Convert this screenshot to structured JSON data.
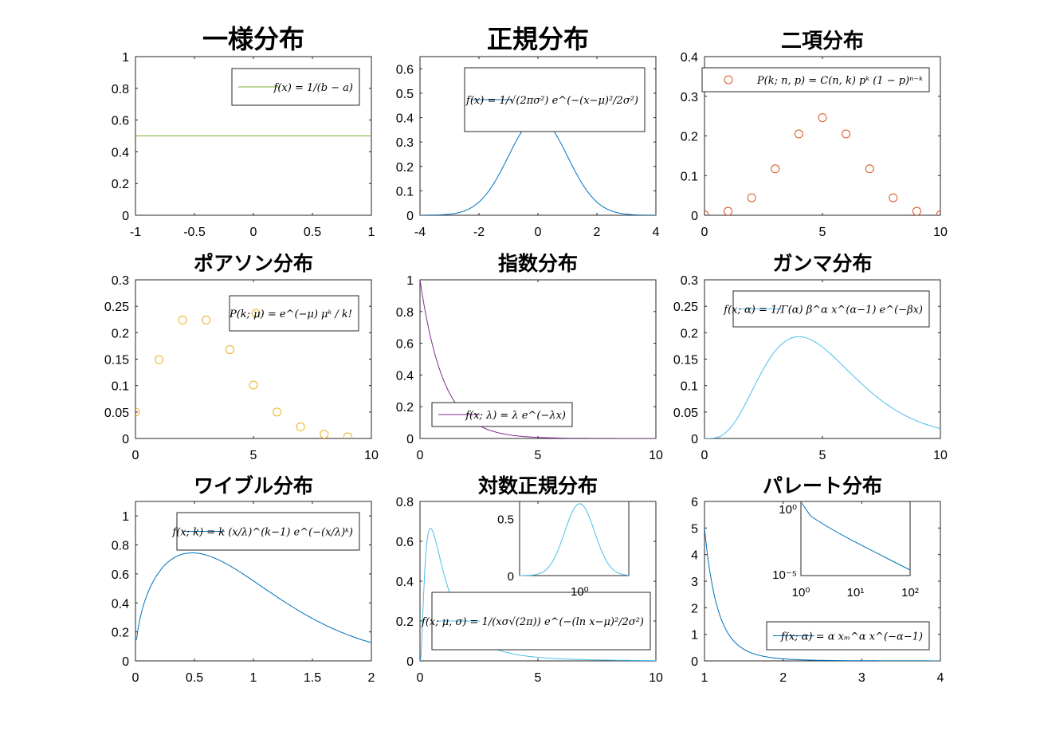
{
  "figure": {
    "background": "#ffffff"
  },
  "chart_data": [
    {
      "type": "line",
      "title": "一様分布",
      "xlim": [
        -1,
        1
      ],
      "ylim": [
        0,
        1
      ],
      "xticks": [
        -1,
        -0.5,
        0,
        0.5,
        1
      ],
      "xtick_labels": [
        "-1",
        "-0.5",
        "0",
        "0.5",
        "1"
      ],
      "yticks": [
        0,
        0.2,
        0.4,
        0.6,
        0.8,
        1
      ],
      "ytick_labels": [
        "0",
        "0.2",
        "0.4",
        "0.6",
        "0.8",
        "1"
      ],
      "legend": {
        "text": "f(x) = 1/(b − a)",
        "position": "top-right",
        "marker": "line"
      },
      "series": [
        {
          "color": "#77ac30",
          "x": [
            -1,
            1
          ],
          "y": [
            0.5,
            0.5
          ]
        }
      ]
    },
    {
      "type": "line",
      "title": "正規分布",
      "xlim": [
        -4,
        4
      ],
      "ylim": [
        0,
        0.65
      ],
      "xticks": [
        -4,
        -2,
        0,
        2,
        4
      ],
      "xtick_labels": [
        "-4",
        "-2",
        "0",
        "2",
        "4"
      ],
      "yticks": [
        0,
        0.1,
        0.2,
        0.3,
        0.4,
        0.5,
        0.6
      ],
      "ytick_labels": [
        "0",
        "0.1",
        "0.2",
        "0.3",
        "0.4",
        "0.5",
        "0.6"
      ],
      "legend": {
        "text": "f(x) = 1/√(2πσ²) e^(−(x−μ)²/2σ²)",
        "position": "top-right",
        "marker": "line"
      },
      "series": [
        {
          "color": "#0072bd",
          "x": [
            -4,
            -3.5,
            -3,
            -2.5,
            -2,
            -1.5,
            -1,
            -0.5,
            0,
            0.5,
            1,
            1.5,
            2,
            2.5,
            3,
            3.5,
            4
          ],
          "y": [
            0.0001,
            0.0009,
            0.0044,
            0.0175,
            0.054,
            0.1295,
            0.242,
            0.352,
            0.399,
            0.352,
            0.242,
            0.1295,
            0.054,
            0.0175,
            0.0044,
            0.0009,
            0.0001
          ]
        }
      ]
    },
    {
      "type": "scatter",
      "title": "二項分布",
      "xlim": [
        0,
        10
      ],
      "ylim": [
        0,
        0.4
      ],
      "xticks": [
        0,
        5,
        10
      ],
      "xtick_labels": [
        "0",
        "5",
        "10"
      ],
      "yticks": [
        0,
        0.1,
        0.2,
        0.3,
        0.4
      ],
      "ytick_labels": [
        "0",
        "0.1",
        "0.2",
        "0.3",
        "0.4"
      ],
      "legend": {
        "text": "P(k; n, p) = C(n, k) pᵏ (1 − p)ⁿ⁻ᵏ",
        "position": "top",
        "marker": "circle"
      },
      "series": [
        {
          "color": "#d95319",
          "x": [
            0,
            1,
            2,
            3,
            4,
            5,
            6,
            7,
            8,
            9,
            10
          ],
          "y": [
            0.001,
            0.01,
            0.044,
            0.117,
            0.205,
            0.246,
            0.205,
            0.117,
            0.044,
            0.01,
            0.001
          ]
        }
      ]
    },
    {
      "type": "scatter",
      "title": "ポアソン分布",
      "xlim": [
        0,
        10
      ],
      "ylim": [
        0,
        0.3
      ],
      "xticks": [
        0,
        5,
        10
      ],
      "xtick_labels": [
        "0",
        "5",
        "10"
      ],
      "yticks": [
        0,
        0.05,
        0.1,
        0.15,
        0.2,
        0.25,
        0.3
      ],
      "ytick_labels": [
        "0",
        "0.05",
        "0.1",
        "0.15",
        "0.2",
        "0.25",
        "0.3"
      ],
      "legend": {
        "text": "P(k; μ) = e^(−μ) μᵏ / k!",
        "position": "top-right",
        "marker": "circle"
      },
      "series": [
        {
          "color": "#edb120",
          "x": [
            0,
            1,
            2,
            3,
            4,
            5,
            6,
            7,
            8,
            9
          ],
          "y": [
            0.05,
            0.149,
            0.224,
            0.224,
            0.168,
            0.101,
            0.05,
            0.022,
            0.008,
            0.003
          ]
        }
      ]
    },
    {
      "type": "line",
      "title": "指数分布",
      "xlim": [
        0,
        10
      ],
      "ylim": [
        0,
        1
      ],
      "xticks": [
        0,
        5,
        10
      ],
      "xtick_labels": [
        "0",
        "5",
        "10"
      ],
      "yticks": [
        0,
        0.2,
        0.4,
        0.6,
        0.8,
        1
      ],
      "ytick_labels": [
        "0",
        "0.2",
        "0.4",
        "0.6",
        "0.8",
        "1"
      ],
      "legend": {
        "text": "f(x; λ) = λ e^(−λx)",
        "position": "bottom-left",
        "marker": "line"
      },
      "series": [
        {
          "color": "#7e2f8e",
          "x": [
            0,
            0.25,
            0.5,
            0.75,
            1,
            1.5,
            2,
            2.5,
            3,
            4,
            5,
            6,
            7,
            8,
            10
          ],
          "y": [
            1,
            0.779,
            0.607,
            0.472,
            0.368,
            0.223,
            0.135,
            0.082,
            0.05,
            0.018,
            0.007,
            0.002,
            0.001,
            0.0003,
            0
          ]
        }
      ]
    },
    {
      "type": "line",
      "title": "ガンマ分布",
      "xlim": [
        0,
        10
      ],
      "ylim": [
        0,
        0.3
      ],
      "xticks": [
        0,
        5,
        10
      ],
      "xtick_labels": [
        "0",
        "5",
        "10"
      ],
      "yticks": [
        0,
        0.05,
        0.1,
        0.15,
        0.2,
        0.25,
        0.3
      ],
      "ytick_labels": [
        "0",
        "0.05",
        "0.1",
        "0.15",
        "0.2",
        "0.25",
        "0.3"
      ],
      "legend": {
        "text": "f(x; α) = 1/Γ(α) β^α x^(α−1) e^(−βx)",
        "position": "top-right",
        "marker": "line"
      },
      "series": [
        {
          "color": "#4dbeee",
          "x": [
            0,
            0.5,
            1,
            1.5,
            2,
            2.5,
            3,
            3.5,
            4,
            4.5,
            5,
            5.5,
            6,
            7,
            8,
            9,
            10
          ],
          "y": [
            0,
            0.0126,
            0.0613,
            0.1255,
            0.1804,
            0.2138,
            0.224,
            0.2158,
            0.1954,
            0.1687,
            0.1404,
            0.1133,
            0.0892,
            0.0521,
            0.0286,
            0.015,
            0.0076
          ]
        }
      ]
    },
    {
      "type": "line",
      "title": "ワイブル分布",
      "xlim": [
        0,
        2
      ],
      "ylim": [
        0,
        1.1
      ],
      "xticks": [
        0,
        0.5,
        1,
        1.5,
        2
      ],
      "xtick_labels": [
        "0",
        "0.5",
        "1",
        "1.5",
        "2"
      ],
      "yticks": [
        0,
        0.2,
        0.4,
        0.6,
        0.8,
        1
      ],
      "ytick_labels": [
        "0",
        "0.2",
        "0.4",
        "0.6",
        "0.8",
        "1"
      ],
      "legend": {
        "text": "f(x; k) = k (x/λ)^(k−1) e^(−(x/λ)ᵏ)",
        "position": "top-right",
        "marker": "line"
      },
      "series": [
        {
          "color": "#0072bd",
          "x": [
            0,
            0.01,
            0.05,
            0.1,
            0.2,
            0.3,
            0.4,
            0.5,
            0.6,
            0.8,
            1,
            1.2,
            1.4,
            1.6,
            1.8,
            2
          ],
          "y": [
            0.14,
            0.24,
            0.41,
            0.53,
            0.65,
            0.71,
            0.74,
            0.75,
            0.74,
            0.69,
            0.6,
            0.49,
            0.38,
            0.28,
            0.19,
            0.12
          ]
        }
      ]
    },
    {
      "type": "line",
      "title": "対数正規分布",
      "xlim": [
        0,
        10
      ],
      "ylim": [
        0,
        0.8
      ],
      "xticks": [
        0,
        5,
        10
      ],
      "xtick_labels": [
        "0",
        "5",
        "10"
      ],
      "yticks": [
        0,
        0.2,
        0.4,
        0.6,
        0.8
      ],
      "ytick_labels": [
        "0",
        "0.2",
        "0.4",
        "0.6",
        "0.8"
      ],
      "legend": {
        "text": "f(x; μ, σ) = 1/(xσ√(2π)) e^(−(ln x−μ)²/2σ²)",
        "position": "bottom-right",
        "marker": "line"
      },
      "series": [
        {
          "color": "#4dbeee",
          "x": [
            0,
            0.05,
            0.1,
            0.2,
            0.3,
            0.4,
            0.6,
            0.8,
            1,
            1.5,
            2,
            3,
            4,
            5,
            7,
            10
          ],
          "y": [
            0,
            0.1,
            0.28,
            0.55,
            0.64,
            0.65,
            0.56,
            0.47,
            0.4,
            0.24,
            0.16,
            0.07,
            0.04,
            0.02,
            0.01,
            0.004
          ]
        }
      ],
      "inset": {
        "type": "line",
        "xscale": "log",
        "xtick_labels": [
          "10⁰"
        ],
        "ytick_labels": [
          "0",
          "0.5"
        ],
        "ylim": [
          0,
          0.65
        ],
        "color": "#4dbeee"
      }
    },
    {
      "type": "line",
      "title": "パレート分布",
      "xlim": [
        1,
        4
      ],
      "ylim": [
        0,
        6
      ],
      "xticks": [
        1,
        2,
        3,
        4
      ],
      "xtick_labels": [
        "1",
        "2",
        "3",
        "4"
      ],
      "yticks": [
        0,
        1,
        2,
        3,
        4,
        5,
        6
      ],
      "ytick_labels": [
        "0",
        "1",
        "2",
        "3",
        "4",
        "5",
        "6"
      ],
      "legend": {
        "text": "f(x; α) = α xₘ^α x^(−α−1)",
        "position": "bottom-right",
        "marker": "line"
      },
      "series": [
        {
          "color": "#0072bd",
          "x": [
            1,
            1.05,
            1.1,
            1.2,
            1.3,
            1.4,
            1.5,
            1.75,
            2,
            2.5,
            3,
            3.5,
            4
          ],
          "y": [
            5,
            3.9,
            3.1,
            2.0,
            1.35,
            0.93,
            0.66,
            0.3,
            0.16,
            0.05,
            0.02,
            0.01,
            0.005
          ]
        }
      ],
      "inset": {
        "type": "line",
        "xscale": "log",
        "yscale": "log",
        "xtick_labels": [
          "10⁰",
          "10¹",
          "10²"
        ],
        "ytick_labels": [
          "10⁰",
          "10⁻⁵"
        ],
        "color": "#0072bd"
      }
    }
  ]
}
